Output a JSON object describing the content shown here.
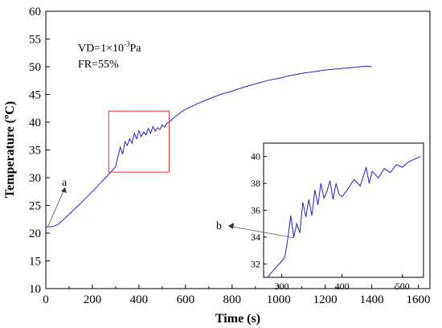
{
  "chart_data": {
    "type": "line",
    "xlabel": "Time (s)",
    "ylabel": "Temperature (ºC)",
    "xlim": [
      0,
      1650
    ],
    "ylim": [
      10,
      60
    ],
    "x_ticks": [
      0,
      200,
      400,
      600,
      800,
      1000,
      1200,
      1400,
      1600
    ],
    "y_ticks": [
      10,
      15,
      20,
      25,
      30,
      35,
      40,
      45,
      50,
      55,
      60
    ],
    "grid": false,
    "series_color": "#2020c8",
    "highlight_color": "#e03030",
    "annotation_lines": {
      "vd_prefix": "VD=1×10",
      "vd_exponent": "-3",
      "vd_suffix": "Pa",
      "fr": "FR=55%"
    },
    "markers": {
      "a": "a",
      "b": "b"
    },
    "highlight_box": {
      "x": [
        270,
        530
      ],
      "y": [
        31,
        42
      ]
    },
    "series": [
      {
        "x": [
          0,
          30,
          50,
          70,
          100,
          150,
          200,
          250,
          270,
          290,
          300,
          310,
          320,
          330,
          340,
          350,
          360,
          370,
          380,
          390,
          400,
          410,
          420,
          430,
          440,
          450,
          460,
          470,
          480,
          490,
          500,
          510,
          520,
          530,
          550,
          580,
          600,
          650,
          700,
          750,
          800,
          850,
          900,
          950,
          1000,
          1050,
          1100,
          1150,
          1200,
          1250,
          1300,
          1350,
          1380,
          1400
        ],
        "y": [
          21.1,
          21.2,
          21.5,
          22.2,
          23.4,
          25.4,
          27.5,
          29.7,
          30.6,
          31.5,
          32.0,
          33.8,
          35.5,
          34.2,
          36.5,
          35.8,
          37.0,
          36.2,
          38.0,
          37.0,
          38.5,
          37.4,
          38.2,
          37.7,
          38.9,
          38.0,
          39.2,
          38.4,
          39.0,
          38.7,
          39.5,
          39.1,
          39.8,
          40.0,
          40.8,
          41.8,
          42.3,
          43.3,
          44.2,
          45.0,
          45.6,
          46.3,
          46.9,
          47.5,
          47.9,
          48.4,
          48.8,
          49.1,
          49.4,
          49.6,
          49.8,
          50.0,
          50.1,
          50.0
        ]
      }
    ],
    "inset": {
      "xlim": [
        270,
        535
      ],
      "ylim": [
        31,
        41
      ],
      "x_ticks": [
        300,
        400,
        500
      ],
      "y_ticks": [
        32,
        34,
        36,
        38,
        40
      ],
      "x": [
        270,
        280,
        290,
        300,
        305,
        310,
        315,
        320,
        325,
        330,
        335,
        340,
        345,
        350,
        355,
        360,
        365,
        370,
        375,
        380,
        385,
        390,
        395,
        400,
        410,
        420,
        430,
        440,
        445,
        450,
        460,
        470,
        480,
        490,
        500,
        510,
        520,
        530
      ],
      "y": [
        30.5,
        31.2,
        31.7,
        32.2,
        32.5,
        33.8,
        35.6,
        34.0,
        35.0,
        34.3,
        36.6,
        35.5,
        36.8,
        35.6,
        37.5,
        36.4,
        38.0,
        36.9,
        37.4,
        38.2,
        36.8,
        38.0,
        37.2,
        37.0,
        37.6,
        38.3,
        37.8,
        39.2,
        38.0,
        38.9,
        38.4,
        39.1,
        38.8,
        39.4,
        39.2,
        39.6,
        39.8,
        40.0
      ]
    }
  }
}
